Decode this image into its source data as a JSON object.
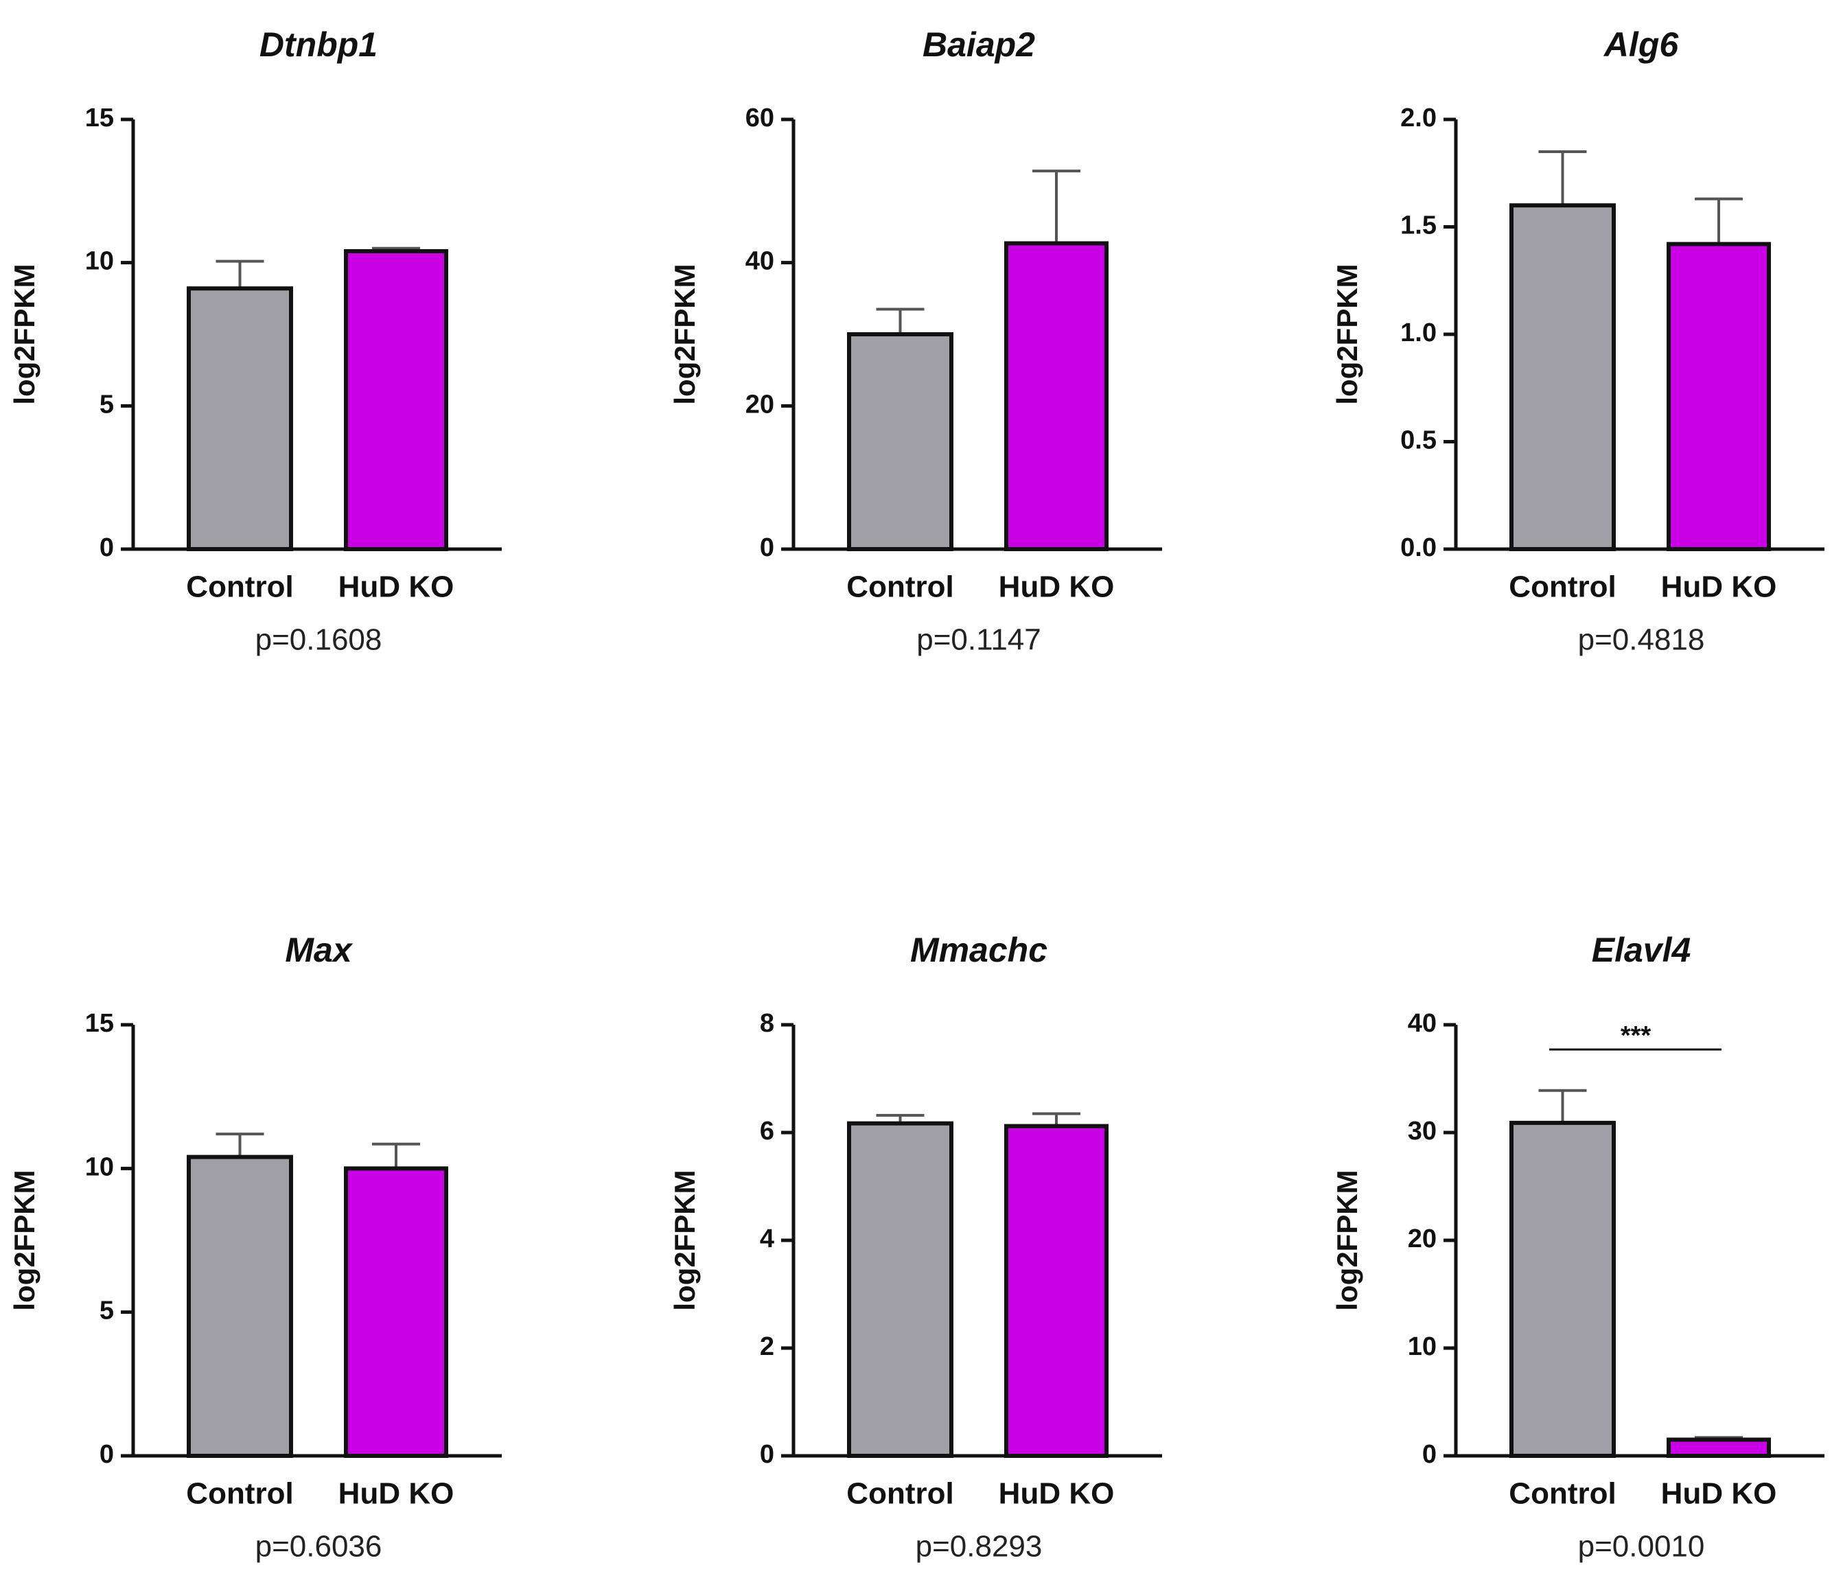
{
  "chart_data": [
    {
      "type": "bar",
      "title": "Dtnbp1",
      "y_label": "log2FPKM",
      "categories": [
        "Control",
        "HuD KO"
      ],
      "values": [
        9.1,
        10.4
      ],
      "errors": [
        0.95,
        0.1
      ],
      "colors": [
        "#a0a0a6",
        "#c800e3"
      ],
      "ylim": [
        0,
        15
      ],
      "yticks": [
        0,
        5,
        10,
        15
      ],
      "annotation": "p=0.1608"
    },
    {
      "type": "bar",
      "title": "Baiap2",
      "y_label": "log2FPKM",
      "categories": [
        "Control",
        "HuD KO"
      ],
      "values": [
        30,
        42.7
      ],
      "errors": [
        3.5,
        10.1
      ],
      "colors": [
        "#a0a0a6",
        "#c800e3"
      ],
      "ylim": [
        0,
        60
      ],
      "yticks": [
        0,
        20,
        40,
        60
      ],
      "annotation": "p=0.1147"
    },
    {
      "type": "bar",
      "title": "Alg6",
      "y_label": "log2FPKM",
      "categories": [
        "Control",
        "HuD KO"
      ],
      "values": [
        1.6,
        1.42
      ],
      "errors": [
        0.25,
        0.21
      ],
      "colors": [
        "#a0a0a6",
        "#c800e3"
      ],
      "ylim": [
        0,
        2
      ],
      "yticks": [
        {
          "value": 0,
          "label": "0.0"
        },
        0.5,
        {
          "value": 1,
          "label": "1.0"
        },
        1.5,
        {
          "value": 2,
          "label": "2.0"
        }
      ],
      "annotation": "p=0.4818"
    },
    {
      "type": "bar",
      "title": "Max",
      "y_label": "log2FPKM",
      "categories": [
        "Control",
        "HuD KO"
      ],
      "values": [
        10.4,
        10.0
      ],
      "errors": [
        0.8,
        0.85
      ],
      "colors": [
        "#a0a0a6",
        "#c800e3"
      ],
      "ylim": [
        0,
        15
      ],
      "yticks": [
        0,
        5,
        10,
        15
      ],
      "annotation": "p=0.6036"
    },
    {
      "type": "bar",
      "title": "Mmachc",
      "y_label": "log2FPKM",
      "categories": [
        "Control",
        "HuD KO"
      ],
      "values": [
        6.17,
        6.12
      ],
      "errors": [
        0.15,
        0.23
      ],
      "colors": [
        "#a0a0a6",
        "#c800e3"
      ],
      "ylim": [
        0,
        8
      ],
      "yticks": [
        0,
        2,
        4,
        6,
        8
      ],
      "annotation": "p=0.8293"
    },
    {
      "type": "bar",
      "title": "Elavl4",
      "y_label": "log2FPKM",
      "categories": [
        "Control",
        "HuD KO"
      ],
      "values": [
        30.9,
        1.5
      ],
      "errors": [
        3.0,
        0.2
      ],
      "colors": [
        "#a0a0a6",
        "#c800e3"
      ],
      "ylim": [
        0,
        40
      ],
      "yticks": [
        0,
        10,
        20,
        30,
        40
      ],
      "annotation": "p=0.0010",
      "significance": "***"
    }
  ]
}
